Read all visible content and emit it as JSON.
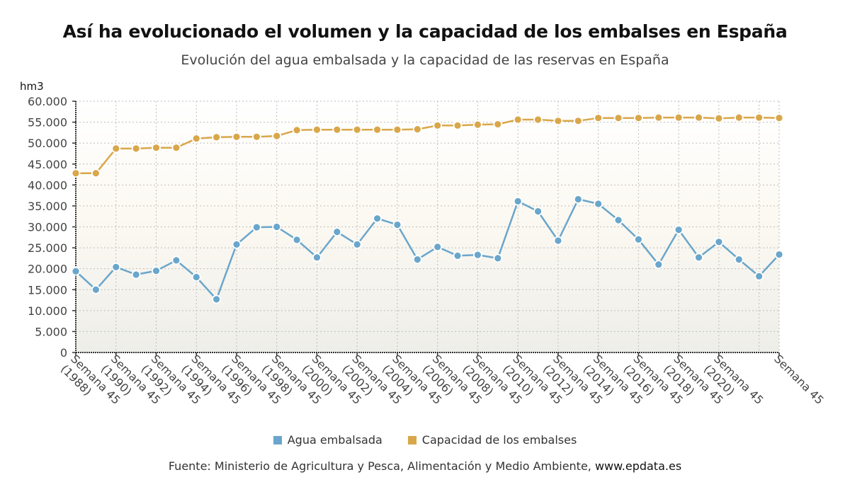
{
  "header": {
    "title": "Así ha evolucionado el volumen y la capacidad de los embalses en España",
    "subtitle": "Evolución del agua embalsada y la capacidad de las reservas en España"
  },
  "source": {
    "text": "Fuente: Ministerio de Agricultura y Pesca, Alimentación y Medio Ambiente, ",
    "url": "www.epdata.es"
  },
  "chart_data": {
    "type": "line",
    "title": "Así ha evolucionado el volumen y la capacidad de los embalses en España",
    "subtitle": "Evolución del agua embalsada y la capacidad de las reservas en España",
    "xlabel": "",
    "ylabel": "hm3",
    "ylim": [
      0,
      60000
    ],
    "yticks": [
      0,
      5000,
      10000,
      15000,
      20000,
      25000,
      30000,
      35000,
      40000,
      45000,
      50000,
      55000,
      60000
    ],
    "ytick_labels": [
      "0",
      "5.000",
      "10.000",
      "15.000",
      "20.000",
      "25.000",
      "30.000",
      "35.000",
      "40.000",
      "45.000",
      "50.000",
      "55.000",
      "60.000"
    ],
    "grid": true,
    "legend_position": "bottom-center",
    "x": [
      "1988",
      "1989",
      "1990",
      "1991",
      "1992",
      "1993",
      "1994",
      "1995",
      "1996",
      "1997",
      "1998",
      "1999",
      "2000",
      "2001",
      "2002",
      "2003",
      "2004",
      "2005",
      "2006",
      "2007",
      "2008",
      "2009",
      "2010",
      "2011",
      "2012",
      "2013",
      "2014",
      "2015",
      "2016",
      "2017",
      "2018",
      "2019",
      "2020",
      "2021",
      "2022",
      "2023"
    ],
    "xtick_labels": [
      {
        "index": 0,
        "line1": "Semana 45",
        "line2": "(1988)"
      },
      {
        "index": 2,
        "line1": "Semana 45",
        "line2": "(1990)"
      },
      {
        "index": 4,
        "line1": "Semana 45",
        "line2": "(1992)"
      },
      {
        "index": 6,
        "line1": "Semana 45",
        "line2": "(1994)"
      },
      {
        "index": 8,
        "line1": "Semana 45",
        "line2": "(1996)"
      },
      {
        "index": 10,
        "line1": "Semana 45",
        "line2": "(1998)"
      },
      {
        "index": 12,
        "line1": "Semana 45",
        "line2": "(2000)"
      },
      {
        "index": 14,
        "line1": "Semana 45",
        "line2": "(2002)"
      },
      {
        "index": 16,
        "line1": "Semana 45",
        "line2": "(2004)"
      },
      {
        "index": 18,
        "line1": "Semana 45",
        "line2": "(2006)"
      },
      {
        "index": 20,
        "line1": "Semana 45",
        "line2": "(2008)"
      },
      {
        "index": 22,
        "line1": "Semana 45",
        "line2": "(2010)"
      },
      {
        "index": 24,
        "line1": "Semana 45",
        "line2": "(2012)"
      },
      {
        "index": 26,
        "line1": "Semana 45",
        "line2": "(2014)"
      },
      {
        "index": 28,
        "line1": "Semana 45",
        "line2": "(2016)"
      },
      {
        "index": 30,
        "line1": "Semana 45",
        "line2": "(2018)"
      },
      {
        "index": 32,
        "line1": "Semana 45",
        "line2": "(2020)"
      },
      {
        "index": 35,
        "line1": "Semana 45",
        "line2": ""
      }
    ],
    "series": [
      {
        "name": "Agua embalsada",
        "color": "#6aa6cb",
        "values": [
          19400,
          15000,
          20400,
          18600,
          19500,
          22000,
          18000,
          12700,
          25800,
          29900,
          30000,
          26900,
          22700,
          28800,
          25800,
          32000,
          30500,
          22200,
          25200,
          23100,
          23300,
          22500,
          36100,
          33700,
          26700,
          36600,
          35500,
          31600,
          27000,
          21000,
          29300,
          22700,
          26400,
          22200,
          18200,
          23400
        ]
      },
      {
        "name": "Capacidad de los embalses",
        "color": "#d9a74a",
        "values": [
          42800,
          42800,
          48700,
          48700,
          48900,
          48900,
          51100,
          51400,
          51500,
          51500,
          51700,
          53100,
          53200,
          53200,
          53200,
          53200,
          53200,
          53300,
          54200,
          54200,
          54400,
          54500,
          55600,
          55600,
          55300,
          55300,
          56000,
          56000,
          56000,
          56100,
          56100,
          56100,
          55900,
          56100,
          56100,
          56000
        ]
      }
    ]
  }
}
